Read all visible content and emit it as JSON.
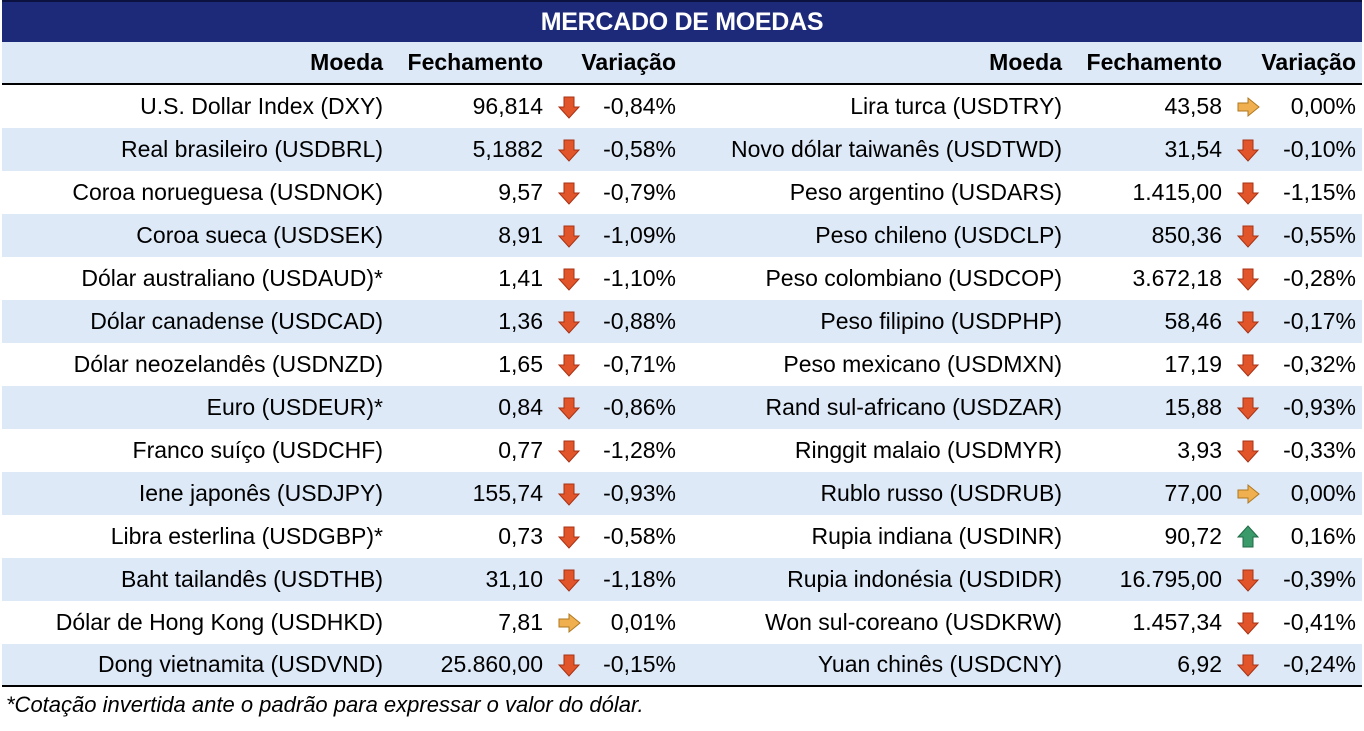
{
  "title": "MERCADO DE MOEDAS",
  "headers": {
    "moeda": "Moeda",
    "fechamento": "Fechamento",
    "variacao": "Variação"
  },
  "colors": {
    "title_bg": "#1d2a7a",
    "stripe": "#dde9f7",
    "down": "#e2552b",
    "up": "#3a9a6a",
    "flat": "#f0b050"
  },
  "rows": [
    {
      "left": {
        "name": "U.S. Dollar Index (DXY)",
        "close": "96,814",
        "dir": "down",
        "change": "-0,84%"
      },
      "right": {
        "name": "Lira turca (USDTRY)",
        "close": "43,58",
        "dir": "flat",
        "change": "0,00%"
      }
    },
    {
      "left": {
        "name": "Real brasileiro (USDBRL)",
        "close": "5,1882",
        "dir": "down",
        "change": "-0,58%"
      },
      "right": {
        "name": "Novo dólar taiwanês (USDTWD)",
        "close": "31,54",
        "dir": "down",
        "change": "-0,10%"
      }
    },
    {
      "left": {
        "name": "Coroa norueguesa (USDNOK)",
        "close": "9,57",
        "dir": "down",
        "change": "-0,79%"
      },
      "right": {
        "name": "Peso argentino (USDARS)",
        "close": "1.415,00",
        "dir": "down",
        "change": "-1,15%"
      }
    },
    {
      "left": {
        "name": "Coroa sueca (USDSEK)",
        "close": "8,91",
        "dir": "down",
        "change": "-1,09%"
      },
      "right": {
        "name": "Peso chileno (USDCLP)",
        "close": "850,36",
        "dir": "down",
        "change": "-0,55%"
      }
    },
    {
      "left": {
        "name": "Dólar australiano (USDAUD)*",
        "close": "1,41",
        "dir": "down",
        "change": "-1,10%"
      },
      "right": {
        "name": "Peso colombiano (USDCOP)",
        "close": "3.672,18",
        "dir": "down",
        "change": "-0,28%"
      }
    },
    {
      "left": {
        "name": "Dólar canadense (USDCAD)",
        "close": "1,36",
        "dir": "down",
        "change": "-0,88%"
      },
      "right": {
        "name": "Peso filipino (USDPHP)",
        "close": "58,46",
        "dir": "down",
        "change": "-0,17%"
      }
    },
    {
      "left": {
        "name": "Dólar neozelandês (USDNZD)",
        "close": "1,65",
        "dir": "down",
        "change": "-0,71%"
      },
      "right": {
        "name": "Peso mexicano (USDMXN)",
        "close": "17,19",
        "dir": "down",
        "change": "-0,32%"
      }
    },
    {
      "left": {
        "name": "Euro (USDEUR)*",
        "close": "0,84",
        "dir": "down",
        "change": "-0,86%"
      },
      "right": {
        "name": "Rand sul-africano (USDZAR)",
        "close": "15,88",
        "dir": "down",
        "change": "-0,93%"
      }
    },
    {
      "left": {
        "name": "Franco suíço (USDCHF)",
        "close": "0,77",
        "dir": "down",
        "change": "-1,28%"
      },
      "right": {
        "name": "Ringgit malaio (USDMYR)",
        "close": "3,93",
        "dir": "down",
        "change": "-0,33%"
      }
    },
    {
      "left": {
        "name": "Iene japonês (USDJPY)",
        "close": "155,74",
        "dir": "down",
        "change": "-0,93%"
      },
      "right": {
        "name": "Rublo russo (USDRUB)",
        "close": "77,00",
        "dir": "flat",
        "change": "0,00%"
      }
    },
    {
      "left": {
        "name": "Libra esterlina (USDGBP)*",
        "close": "0,73",
        "dir": "down",
        "change": "-0,58%"
      },
      "right": {
        "name": "Rupia indiana (USDINR)",
        "close": "90,72",
        "dir": "up",
        "change": "0,16%"
      }
    },
    {
      "left": {
        "name": "Baht tailandês (USDTHB)",
        "close": "31,10",
        "dir": "down",
        "change": "-1,18%"
      },
      "right": {
        "name": "Rupia indonésia (USDIDR)",
        "close": "16.795,00",
        "dir": "down",
        "change": "-0,39%"
      }
    },
    {
      "left": {
        "name": "Dólar de Hong Kong (USDHKD)",
        "close": "7,81",
        "dir": "flat",
        "change": "0,01%"
      },
      "right": {
        "name": "Won sul-coreano (USDKRW)",
        "close": "1.457,34",
        "dir": "down",
        "change": "-0,41%"
      }
    },
    {
      "left": {
        "name": "Dong vietnamita (USDVND)",
        "close": "25.860,00",
        "dir": "down",
        "change": "-0,15%"
      },
      "right": {
        "name": "Yuan chinês (USDCNY)",
        "close": "6,92",
        "dir": "down",
        "change": "-0,24%"
      }
    }
  ],
  "footnote": "*Cotação invertida ante o padrão para expressar o valor do dólar."
}
